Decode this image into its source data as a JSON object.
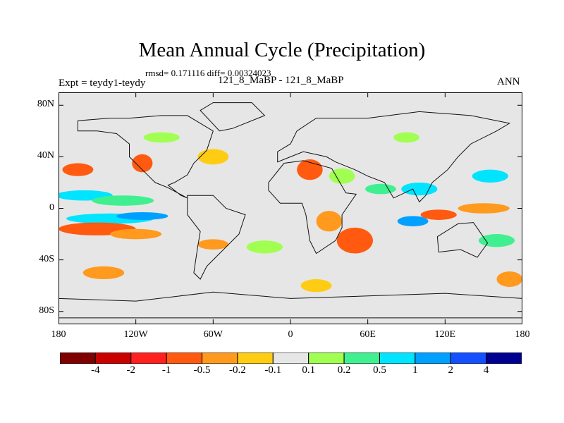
{
  "chart": {
    "title": "Mean Annual Cycle (Precipitation)",
    "stats": "rmsd= 0.171116 diff= 0.00324023",
    "expt": "Expt = teydy1-teydy",
    "case": "121_8_MaBP - 121_8_MaBP",
    "season": "ANN"
  },
  "chart_data": {
    "type": "heatmap",
    "title": "Mean Annual Cycle (Precipitation)",
    "subtitle": "rmsd= 0.171116 diff= 0.00324023",
    "xlabel": "",
    "ylabel": "",
    "xlim": [
      -180,
      180
    ],
    "ylim": [
      -90,
      90
    ],
    "x_ticks": [
      {
        "value": -180,
        "label": "180"
      },
      {
        "value": -120,
        "label": "120W"
      },
      {
        "value": -60,
        "label": "60W"
      },
      {
        "value": 0,
        "label": "0"
      },
      {
        "value": 60,
        "label": "60E"
      },
      {
        "value": 120,
        "label": "120E"
      },
      {
        "value": 180,
        "label": "180"
      }
    ],
    "y_ticks": [
      {
        "value": 80,
        "label": "80N"
      },
      {
        "value": 40,
        "label": "40N"
      },
      {
        "value": 0,
        "label": "0"
      },
      {
        "value": -40,
        "label": "40S"
      },
      {
        "value": -80,
        "label": "80S"
      }
    ],
    "colorbar": {
      "levels": [
        "-4",
        "-2",
        "-1",
        "-0.5",
        "-0.2",
        "-0.1",
        "0.1",
        "0.2",
        "0.5",
        "1",
        "2",
        "4"
      ],
      "colors": [
        "#7f0000",
        "#c80000",
        "#ff2020",
        "#ff5a10",
        "#ff9a1e",
        "#ffcc14",
        "#e6e6e6",
        "#a0ff50",
        "#40f090",
        "#00e4ff",
        "#00a0ff",
        "#1450ff",
        "#000090"
      ]
    },
    "regions": [
      {
        "lon": -160,
        "lat": 10,
        "rx": 22,
        "ry": 4,
        "level": 9
      },
      {
        "lon": -130,
        "lat": 6,
        "rx": 24,
        "ry": 4,
        "level": 8
      },
      {
        "lon": -140,
        "lat": -8,
        "rx": 34,
        "ry": 4,
        "level": 9
      },
      {
        "lon": -115,
        "lat": -6,
        "rx": 20,
        "ry": 3,
        "level": 10
      },
      {
        "lon": -150,
        "lat": -16,
        "rx": 30,
        "ry": 5,
        "level": 3
      },
      {
        "lon": -120,
        "lat": -20,
        "rx": 20,
        "ry": 4,
        "level": 4
      },
      {
        "lon": -165,
        "lat": 30,
        "rx": 12,
        "ry": 5,
        "level": 3
      },
      {
        "lon": -115,
        "lat": 35,
        "rx": 8,
        "ry": 7,
        "level": 3
      },
      {
        "lon": -60,
        "lat": 40,
        "rx": 12,
        "ry": 6,
        "level": 5
      },
      {
        "lon": -100,
        "lat": 55,
        "rx": 14,
        "ry": 4,
        "level": 7
      },
      {
        "lon": -145,
        "lat": -50,
        "rx": 16,
        "ry": 5,
        "level": 4
      },
      {
        "lon": -60,
        "lat": -28,
        "rx": 12,
        "ry": 4,
        "level": 4
      },
      {
        "lon": -20,
        "lat": -30,
        "rx": 14,
        "ry": 5,
        "level": 7
      },
      {
        "lon": 15,
        "lat": 30,
        "rx": 10,
        "ry": 8,
        "level": 3
      },
      {
        "lon": 40,
        "lat": 25,
        "rx": 10,
        "ry": 6,
        "level": 7
      },
      {
        "lon": 50,
        "lat": -25,
        "rx": 14,
        "ry": 10,
        "level": 3
      },
      {
        "lon": 30,
        "lat": -10,
        "rx": 10,
        "ry": 8,
        "level": 4
      },
      {
        "lon": 70,
        "lat": 15,
        "rx": 12,
        "ry": 4,
        "level": 8
      },
      {
        "lon": 100,
        "lat": 15,
        "rx": 14,
        "ry": 5,
        "level": 9
      },
      {
        "lon": 115,
        "lat": -5,
        "rx": 14,
        "ry": 4,
        "level": 3
      },
      {
        "lon": 150,
        "lat": 0,
        "rx": 20,
        "ry": 4,
        "level": 4
      },
      {
        "lon": 155,
        "lat": 25,
        "rx": 14,
        "ry": 5,
        "level": 9
      },
      {
        "lon": 95,
        "lat": -10,
        "rx": 12,
        "ry": 4,
        "level": 10
      },
      {
        "lon": 160,
        "lat": -25,
        "rx": 14,
        "ry": 5,
        "level": 8
      },
      {
        "lon": 170,
        "lat": -55,
        "rx": 10,
        "ry": 6,
        "level": 4
      },
      {
        "lon": 20,
        "lat": -60,
        "rx": 12,
        "ry": 5,
        "level": 5
      },
      {
        "lon": 90,
        "lat": 55,
        "rx": 10,
        "ry": 4,
        "level": 7
      }
    ],
    "landmasses": [
      {
        "name": "North America",
        "coords": [
          [
            -165,
            68
          ],
          [
            -140,
            70
          ],
          [
            -125,
            70
          ],
          [
            -100,
            72
          ],
          [
            -80,
            72
          ],
          [
            -60,
            60
          ],
          [
            -65,
            45
          ],
          [
            -75,
            35
          ],
          [
            -80,
            26
          ],
          [
            -90,
            20
          ],
          [
            -95,
            18
          ],
          [
            -85,
            10
          ],
          [
            -80,
            8
          ],
          [
            -95,
            16
          ],
          [
            -105,
            20
          ],
          [
            -115,
            30
          ],
          [
            -125,
            40
          ],
          [
            -125,
            50
          ],
          [
            -135,
            58
          ],
          [
            -150,
            60
          ],
          [
            -165,
            60
          ]
        ]
      },
      {
        "name": "South America",
        "coords": [
          [
            -80,
            10
          ],
          [
            -60,
            10
          ],
          [
            -50,
            0
          ],
          [
            -35,
            -5
          ],
          [
            -40,
            -20
          ],
          [
            -48,
            -28
          ],
          [
            -58,
            -38
          ],
          [
            -65,
            -45
          ],
          [
            -70,
            -55
          ],
          [
            -75,
            -50
          ],
          [
            -72,
            -30
          ],
          [
            -70,
            -18
          ],
          [
            -80,
            -5
          ]
        ]
      },
      {
        "name": "Africa",
        "coords": [
          [
            -17,
            20
          ],
          [
            -5,
            35
          ],
          [
            10,
            37
          ],
          [
            32,
            31
          ],
          [
            43,
            12
          ],
          [
            51,
            11
          ],
          [
            40,
            -5
          ],
          [
            40,
            -15
          ],
          [
            35,
            -25
          ],
          [
            20,
            -35
          ],
          [
            15,
            -25
          ],
          [
            12,
            -5
          ],
          [
            9,
            4
          ],
          [
            -8,
            4
          ],
          [
            -17,
            14
          ]
        ]
      },
      {
        "name": "Eurasia",
        "coords": [
          [
            -10,
            36
          ],
          [
            -10,
            44
          ],
          [
            0,
            50
          ],
          [
            5,
            60
          ],
          [
            20,
            70
          ],
          [
            60,
            70
          ],
          [
            100,
            75
          ],
          [
            140,
            72
          ],
          [
            170,
            66
          ],
          [
            160,
            60
          ],
          [
            140,
            50
          ],
          [
            130,
            40
          ],
          [
            122,
            30
          ],
          [
            110,
            20
          ],
          [
            105,
            10
          ],
          [
            100,
            5
          ],
          [
            95,
            15
          ],
          [
            80,
            8
          ],
          [
            73,
            20
          ],
          [
            60,
            25
          ],
          [
            50,
            30
          ],
          [
            35,
            36
          ],
          [
            28,
            40
          ],
          [
            10,
            44
          ],
          [
            0,
            40
          ]
        ]
      },
      {
        "name": "Australia",
        "coords": [
          [
            114,
            -22
          ],
          [
            130,
            -12
          ],
          [
            142,
            -11
          ],
          [
            153,
            -27
          ],
          [
            145,
            -38
          ],
          [
            132,
            -32
          ],
          [
            115,
            -34
          ]
        ]
      },
      {
        "name": "Greenland",
        "coords": [
          [
            -55,
            60
          ],
          [
            -45,
            62
          ],
          [
            -20,
            72
          ],
          [
            -30,
            82
          ],
          [
            -60,
            82
          ],
          [
            -70,
            76
          ]
        ]
      },
      {
        "name": "Antarctica",
        "coords": [
          [
            -180,
            -70
          ],
          [
            -120,
            -72
          ],
          [
            -60,
            -65
          ],
          [
            0,
            -70
          ],
          [
            60,
            -68
          ],
          [
            120,
            -66
          ],
          [
            180,
            -70
          ],
          [
            180,
            -85
          ],
          [
            -180,
            -85
          ]
        ]
      }
    ]
  }
}
